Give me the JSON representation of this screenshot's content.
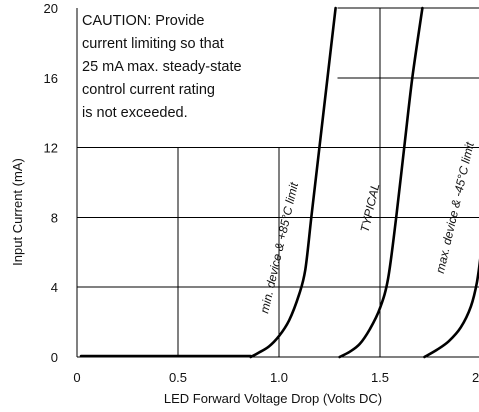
{
  "chart_data": {
    "type": "line",
    "title": "",
    "xlabel": "LED Forward Voltage Drop (Volts DC)",
    "ylabel": "Input Current (mA)",
    "xlim": [
      0,
      2.5
    ],
    "ylim": [
      0,
      20
    ],
    "x_ticks": [
      "0",
      "0.5",
      "1.0",
      "1.5",
      "2.0"
    ],
    "y_ticks": [
      "0",
      "4",
      "8",
      "12",
      "16",
      "20"
    ],
    "grid": true,
    "annotation": {
      "lines": [
        "CAUTION: Provide",
        "current limiting so that",
        "25 mA max. steady-state",
        "control current rating",
        "is not exceeded."
      ]
    },
    "series": [
      {
        "name": "min. device & +85°C limit",
        "points": [
          [
            0.86,
            0
          ],
          [
            0.9,
            0.25
          ],
          [
            0.95,
            0.6
          ],
          [
            1.0,
            1.2
          ],
          [
            1.05,
            2.1
          ],
          [
            1.1,
            3.6
          ],
          [
            1.13,
            5.0
          ],
          [
            1.16,
            8.0
          ],
          [
            1.2,
            12.0
          ],
          [
            1.24,
            16.0
          ],
          [
            1.28,
            20.0
          ]
        ]
      },
      {
        "name": "TYPICAL",
        "points": [
          [
            1.3,
            0
          ],
          [
            1.35,
            0.3
          ],
          [
            1.4,
            0.75
          ],
          [
            1.45,
            1.6
          ],
          [
            1.5,
            2.8
          ],
          [
            1.54,
            4.5
          ],
          [
            1.58,
            8.0
          ],
          [
            1.62,
            12.0
          ],
          [
            1.66,
            16.0
          ],
          [
            1.71,
            20.0
          ]
        ]
      },
      {
        "name": "max. device & -45°C limit",
        "points": [
          [
            1.72,
            0
          ],
          [
            1.78,
            0.4
          ],
          [
            1.84,
            0.9
          ],
          [
            1.9,
            1.7
          ],
          [
            1.95,
            2.9
          ],
          [
            1.98,
            4.3
          ],
          [
            2.0,
            6.0
          ],
          [
            2.03,
            9.5
          ],
          [
            2.07,
            14.0
          ],
          [
            2.11,
            18.0
          ],
          [
            2.14,
            20.0
          ]
        ]
      }
    ]
  }
}
